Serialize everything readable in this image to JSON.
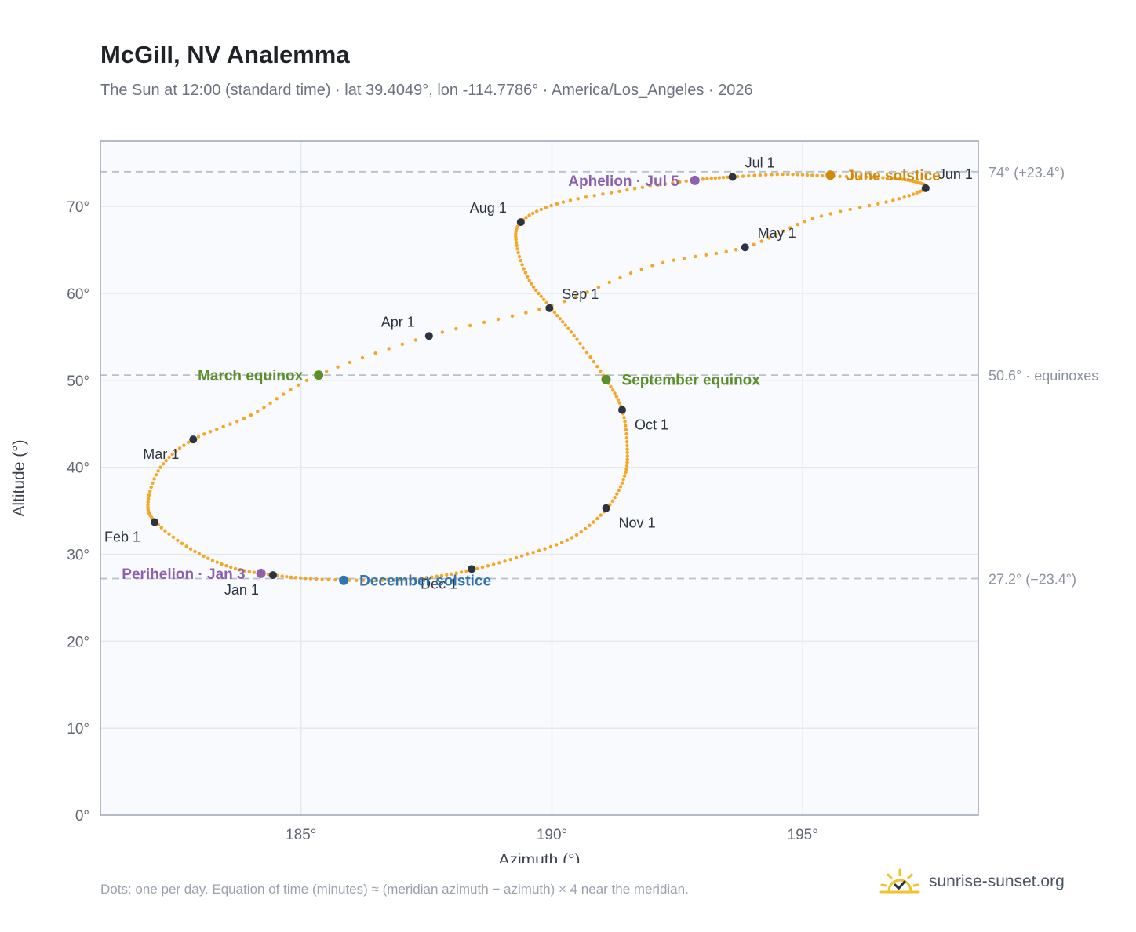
{
  "title": "McGill, NV Analemma",
  "subtitle": "The Sun at 12:00 (standard time) · lat 39.4049°, lon -114.7786° · America/Los_Angeles · 2026",
  "footnote": "Dots: one per day. Equation of time (minutes) ≈ (meridian azimuth − azimuth) × 4 near the meridian.",
  "brand": {
    "name": "sunrise-sunset.org",
    "icon": "sun-logo-icon"
  },
  "colors": {
    "path": "#f5a623",
    "month_marker": "#2d3340",
    "equinox": "#5a8f2a",
    "june_solstice": "#d4890a",
    "december_solstice": "#2f74b5",
    "apsis": "#8c62b0",
    "reference_line": "#b8c0cc",
    "grid": "#e4e9f0",
    "plot_bg": "#f8fafd",
    "axis": "#9aa5b5"
  },
  "chart_data": {
    "type": "scatter",
    "xlabel": "Azimuth (°)",
    "ylabel": "Altitude (°)",
    "xlim": [
      181,
      198.5
    ],
    "ylim": [
      0,
      77.5
    ],
    "x_ticks": [
      {
        "value": 185,
        "label": "185°"
      },
      {
        "value": 190,
        "label": "190°"
      },
      {
        "value": 195,
        "label": "195°"
      }
    ],
    "y_ticks": [
      {
        "value": 0,
        "label": "0°"
      },
      {
        "value": 10,
        "label": "10°"
      },
      {
        "value": 20,
        "label": "20°"
      },
      {
        "value": 30,
        "label": "30°"
      },
      {
        "value": 40,
        "label": "40°"
      },
      {
        "value": 50,
        "label": "50°"
      },
      {
        "value": 60,
        "label": "60°"
      },
      {
        "value": 70,
        "label": "70°"
      }
    ],
    "grid": true,
    "reference_lines": [
      {
        "y": 74.0,
        "label": "74° (+23.4°)"
      },
      {
        "y": 50.6,
        "label": "50.6° · equinoxes"
      },
      {
        "y": 27.2,
        "label": "27.2° (−23.4°)"
      }
    ],
    "path_knots": [
      [
        184.44,
        27.6
      ],
      [
        185.3,
        27.15
      ],
      [
        186.5,
        27.0
      ],
      [
        187.5,
        27.3
      ],
      [
        188.4,
        28.2
      ],
      [
        189.4,
        29.8
      ],
      [
        190.4,
        31.9
      ],
      [
        191.1,
        35.3
      ],
      [
        191.45,
        39.0
      ],
      [
        191.5,
        42.5
      ],
      [
        191.4,
        46.6
      ],
      [
        191.08,
        50.1
      ],
      [
        190.5,
        54.7
      ],
      [
        190.0,
        58.2
      ],
      [
        189.55,
        61.5
      ],
      [
        189.3,
        65.5
      ],
      [
        189.38,
        68.2
      ],
      [
        190.1,
        70.3
      ],
      [
        191.5,
        71.9
      ],
      [
        192.8,
        73.0
      ],
      [
        193.6,
        73.4
      ],
      [
        194.6,
        73.7
      ],
      [
        195.5,
        73.5
      ],
      [
        196.6,
        73.3
      ],
      [
        197.2,
        72.9
      ],
      [
        197.45,
        72.1
      ],
      [
        196.8,
        70.7
      ],
      [
        195.2,
        68.6
      ],
      [
        193.85,
        65.3
      ],
      [
        192.0,
        63.2
      ],
      [
        190.0,
        58.6
      ],
      [
        187.55,
        55.1
      ],
      [
        185.3,
        50.5
      ],
      [
        184.0,
        46.0
      ],
      [
        182.85,
        43.2
      ],
      [
        182.2,
        40.0
      ],
      [
        181.95,
        36.0
      ],
      [
        182.1,
        33.7
      ],
      [
        182.8,
        30.6
      ],
      [
        183.6,
        28.5
      ],
      [
        184.44,
        27.6
      ]
    ],
    "month_markers": [
      {
        "label": "Jan 1",
        "x": 184.44,
        "y": 27.6,
        "anchor": "below-left"
      },
      {
        "label": "Feb 1",
        "x": 182.08,
        "y": 33.7,
        "anchor": "below-left"
      },
      {
        "label": "Mar 1",
        "x": 182.85,
        "y": 43.2,
        "anchor": "below-left"
      },
      {
        "label": "Apr 1",
        "x": 187.55,
        "y": 55.1,
        "anchor": "above-left"
      },
      {
        "label": "May 1",
        "x": 193.85,
        "y": 65.3,
        "anchor": "above-right"
      },
      {
        "label": "Jun 1",
        "x": 197.45,
        "y": 72.1,
        "anchor": "above-right"
      },
      {
        "label": "Jul 1",
        "x": 193.6,
        "y": 73.4,
        "anchor": "above-right"
      },
      {
        "label": "Aug 1",
        "x": 189.38,
        "y": 68.2,
        "anchor": "above-left"
      },
      {
        "label": "Sep 1",
        "x": 189.95,
        "y": 58.3,
        "anchor": "above-right"
      },
      {
        "label": "Oct 1",
        "x": 191.4,
        "y": 46.6,
        "anchor": "below-right"
      },
      {
        "label": "Nov 1",
        "x": 191.08,
        "y": 35.3,
        "anchor": "below-right"
      },
      {
        "label": "Dec 1",
        "x": 188.4,
        "y": 28.3,
        "anchor": "below-left"
      }
    ],
    "events": [
      {
        "label": "March equinox",
        "x": 185.35,
        "y": 50.6,
        "color": "#5a8f2a",
        "anchor": "left"
      },
      {
        "label": "September equinox",
        "x": 191.08,
        "y": 50.1,
        "color": "#5a8f2a",
        "anchor": "right"
      },
      {
        "label": "June solstice",
        "x": 195.55,
        "y": 73.6,
        "color": "#d4890a",
        "anchor": "right"
      },
      {
        "label": "December solstice",
        "x": 185.85,
        "y": 27.0,
        "color": "#2f74b5",
        "anchor": "right"
      },
      {
        "label": "Perihelion · Jan 3",
        "x": 184.2,
        "y": 27.8,
        "color": "#8c62b0",
        "anchor": "left"
      },
      {
        "label": "Aphelion · Jul 5",
        "x": 192.85,
        "y": 73.0,
        "color": "#8c62b0",
        "anchor": "left"
      }
    ]
  }
}
